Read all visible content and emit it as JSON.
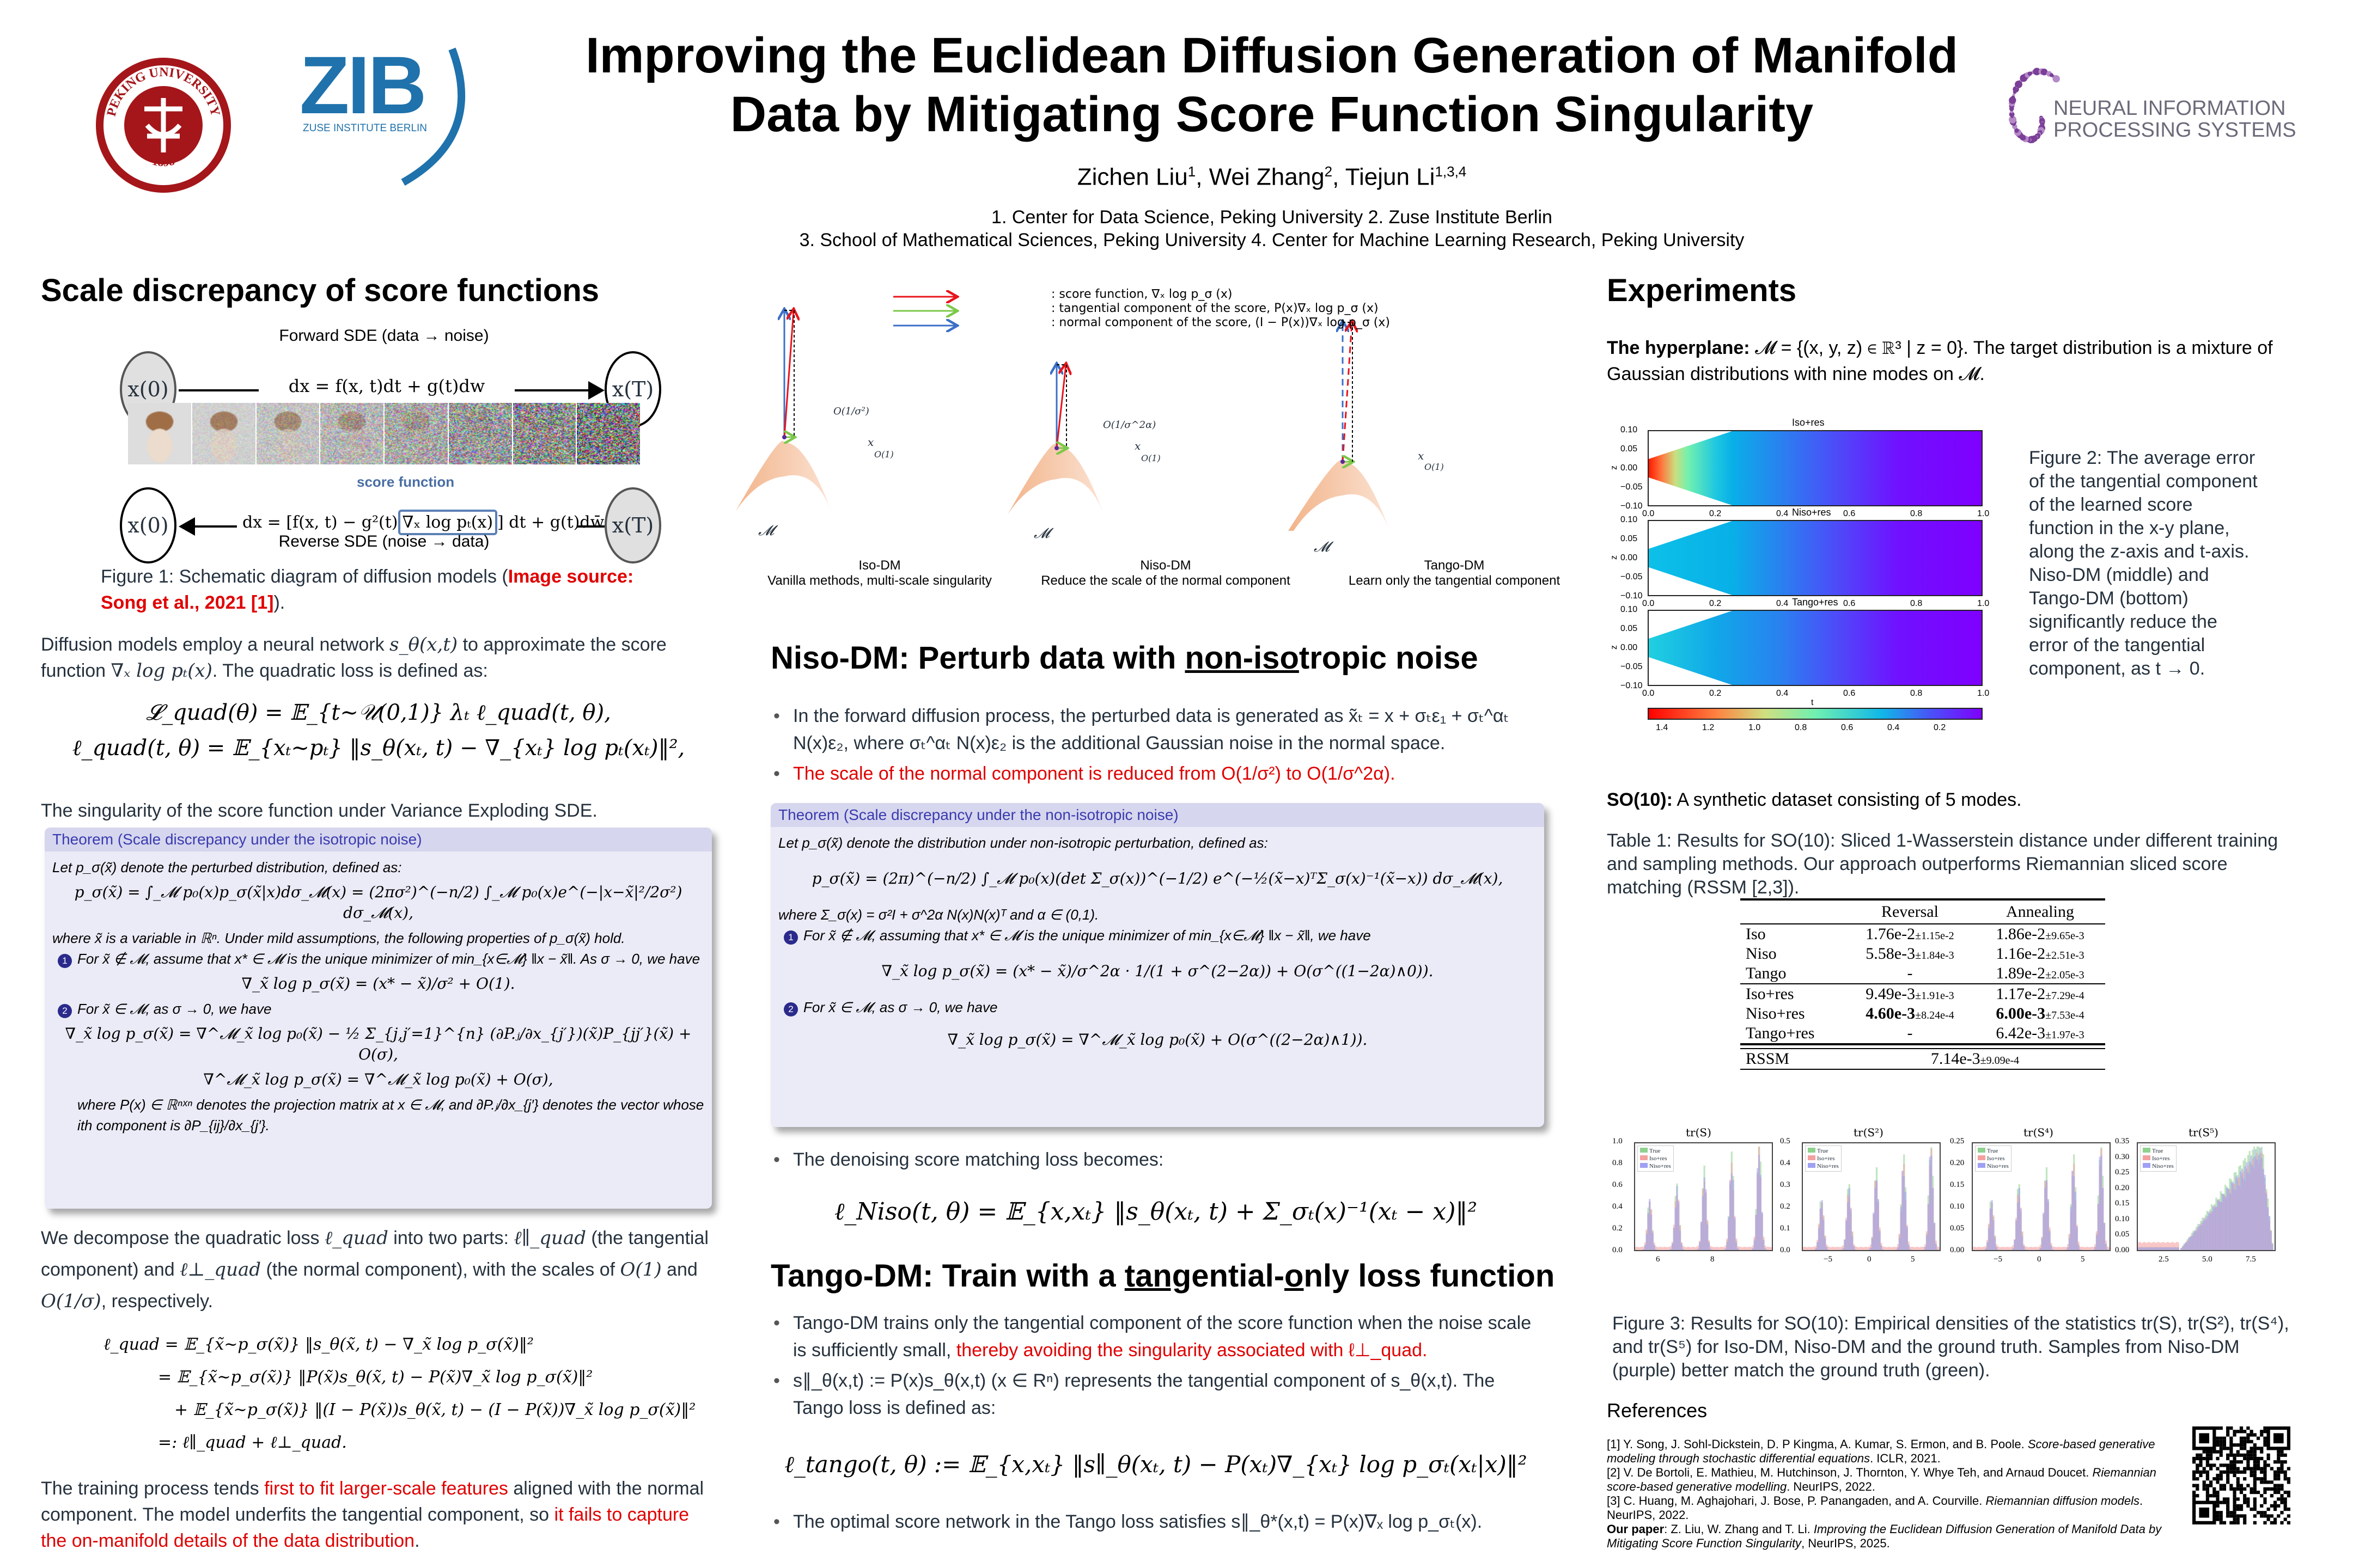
{
  "header": {
    "title_line1": "Improving the Euclidean Diffusion Generation of Manifold",
    "title_line2": "Data by Mitigating Score Function Singularity",
    "authors": [
      {
        "name": "Zichen Liu",
        "sup": "1"
      },
      {
        "name": "Wei Zhang",
        "sup": "2"
      },
      {
        "name": "Tiejun Li",
        "sup": "1,3,4"
      }
    ],
    "affiliation_line1": "1. Center for Data Science, Peking University 2. Zuse Institute Berlin",
    "affiliation_line2": "3. School of Mathematical Sciences, Peking University 4. Center for Machine Learning Research, Peking University",
    "logos": {
      "pku": "PEKING UNIVERSITY",
      "pku_year": "1898",
      "zib": "ZIB",
      "zib_sub": "ZUSE INSTITUTE BERLIN",
      "neurips_line1": "NEURAL INFORMATION",
      "neurips_line2": "PROCESSING SYSTEMS"
    }
  },
  "colors": {
    "accent_red": "#e00000",
    "theorem_header": "#3a3ab0",
    "theorem_bg": "#ebebf7",
    "zib_blue": "#1f72ac",
    "pku_red": "#a4161a",
    "neurips_purple": "#7b3f98"
  },
  "left": {
    "heading": "Scale discrepancy of score functions",
    "fig1": {
      "forward_label": "Forward SDE (data → noise)",
      "forward_eq": "dx = f(x, t)dt + g(t)dw",
      "reverse_label": "Reverse SDE (noise → data)",
      "reverse_eq_a": "dx = [f(x, t) − g²(t)",
      "reverse_eq_box": "∇ₓ log pₜ(x)",
      "reverse_eq_b": "] dt + g(t)dw̄",
      "score_label": "score function",
      "x0": "x(0)",
      "xT": "x(T)"
    },
    "fig1_caption": {
      "a": "Figure 1: Schematic diagram of diffusion models (",
      "src": "Image source: Song et al., 2021 [1]",
      "b": ")."
    },
    "p1": {
      "a": "Diffusion models employ a neural network ",
      "m1": "s_θ(x,t)",
      "b": " to approximate the score function ",
      "m2": "∇ₓ log pₜ(x)",
      "c": ". The quadratic loss is defined as:"
    },
    "eq1": "𝓛_quad(θ) = 𝔼_{t∼𝒰(0,1)} λₜ ℓ_quad(t, θ),",
    "eq2": "ℓ_quad(t, θ) = 𝔼_{xₜ∼pₜ} ‖s_θ(xₜ, t) − ∇_{xₜ} log pₜ(xₜ)‖²,",
    "p2": "The singularity of the score function under Variance Exploding SDE.",
    "theorem": {
      "title": "Theorem (Scale discrepancy under the isotropic noise)",
      "intro": "Let p_σ(x̃) denote the perturbed distribution, defined as:",
      "eq": "p_σ(x̃) = ∫_𝓜 p₀(x)p_σ(x̃|x)dσ_𝓜(x) = (2πσ²)^(−n/2) ∫_𝓜 p₀(x)e^(−|x−x̃|²/2σ²) dσ_𝓜(x),",
      "where": "where x̃ is a variable in ℝⁿ. Under mild assumptions, the following properties of p_σ(x̃) hold.",
      "item1_num": "1",
      "item1": "For x̃ ∉ 𝓜, assume that x* ∈ 𝓜 is the unique minimizer of min_{x∈𝓜} ‖x − x̃‖. As σ → 0, we have",
      "item1_eq": "∇_x̃ log p_σ(x̃) = (x* − x̃)/σ² + O(1).",
      "item2_num": "2",
      "item2": "For x̃ ∈ 𝓜, as σ → 0, we have",
      "item2_eq1": "∇_x̃ log p_σ(x̃) = ∇^𝓜_x̃ log p₀(x̃) − ½ Σ_{j,j′=1}^{n} (∂P.ⱼ/∂x_{j′})(x̃)P_{jj′}(x̃) + O(σ),",
      "item2_eq2": "∇^𝓜_x̃ log p_σ(x̃) = ∇^𝓜_x̃ log p₀(x̃) + O(σ),",
      "note": "where P(x) ∈ ℝⁿˣⁿ denotes the projection matrix at x ∈ 𝓜, and ∂P.ⱼ/∂x_{j′} denotes the vector whose ith component is ∂P_{ij}/∂x_{j′}."
    },
    "p3": {
      "a": "We decompose the quadratic loss ",
      "m1": "ℓ_quad",
      "b": " into two parts: ",
      "m2": "ℓ∥_quad",
      "c": " (the tangential component) and ",
      "m3": "ℓ⊥_quad",
      "d": " (the normal component), with the scales of ",
      "m4": "O(1)",
      "e": " and ",
      "m5": "O(1/σ)",
      "f": ", respectively."
    },
    "decomp": [
      "ℓ_quad = 𝔼_{x̃∼p_σ(x̃)} ‖s_θ(x̃, t) − ∇_x̃ log p_σ(x̃)‖²",
      "= 𝔼_{x̃∼p_σ(x̃)} ‖P(x̃)s_θ(x̃, t) − P(x̃)∇_x̃ log p_σ(x̃)‖²",
      "+ 𝔼_{x̃∼p_σ(x̃)} ‖(I − P(x̃))s_θ(x̃, t) − (I − P(x̃))∇_x̃ log p_σ(x̃)‖²",
      "=: ℓ∥_quad + ℓ⊥_quad."
    ],
    "p4": {
      "a": "The training process tends ",
      "r1": "first to fit larger-scale features",
      "b": " aligned with the normal component. The model underfits the tangential component, so ",
      "r2": "it fails to capture the on-manifold details of the data distribution",
      "c": "."
    }
  },
  "middle": {
    "fig": {
      "legend": [
        ": score function, ∇ₓ log p_σ (x)",
        ": tangential component of the score, P(x)∇ₓ log p_σ (x)",
        ": normal component of the score, (I − P(x))∇ₓ log p_σ (x)"
      ],
      "panels": [
        {
          "name": "Iso-DM",
          "desc": "Vanilla methods, multi-scale singularity",
          "scale": "O(1/σ²)"
        },
        {
          "name": "Niso-DM",
          "desc": "Reduce the scale of the normal component",
          "scale": "O(1/σ^2α)"
        },
        {
          "name": "Tango-DM",
          "desc": "Learn only the tangential component",
          "scale": ""
        }
      ],
      "point_label": "x",
      "tangent_scale": "O(1)",
      "manifold_label": "𝓜"
    },
    "niso_heading": {
      "a": "Niso-DM: Perturb data with ",
      "u": "non-iso",
      "b": "tropic noise"
    },
    "niso_bullets": {
      "b1": "In the forward diffusion process, the perturbed data is generated as x̃ₜ = x + σₜε₁ + σₜ^αₜ N(x)ε₂, where σₜ^αₜ N(x)ε₂ is the additional Gaussian noise in the normal space.",
      "b2": "The scale of the normal component is reduced from O(1/σ²) to O(1/σ^2α)."
    },
    "theorem": {
      "title": "Theorem (Scale discrepancy under the non-isotropic noise)",
      "intro": "Let p_σ(x̃) denote the distribution under non-isotropic perturbation, defined as:",
      "eq": "p_σ(x̃) = (2π)^(−n/2) ∫_𝓜 p₀(x)(det Σ_σ(x))^(−1/2) e^(−½(x̃−x)ᵀΣ_σ(x)⁻¹(x̃−x)) dσ_𝓜(x),",
      "where": "where Σ_σ(x) = σ²I + σ^2α N(x)N(x)ᵀ and α ∈ (0,1).",
      "item1_num": "1",
      "item1": "For x̃ ∉ 𝓜, assuming that x* ∈ 𝓜 is the unique minimizer of min_{x∈𝓜} ‖x − x̃‖, we have",
      "item1_eq": "∇_x̃ log p_σ(x̃) = (x* − x̃)/σ^2α · 1/(1 + σ^(2−2α)) + O(σ^((1−2α)∧0)).",
      "item2_num": "2",
      "item2": "For x̃ ∈ 𝓜, as σ → 0, we have",
      "item2_eq": "∇_x̃ log p_σ(x̃) = ∇^𝓜_x̃ log p₀(x̃) + O(σ^((2−2α)∧1))."
    },
    "dsm_bullet": "The denoising score matching loss becomes:",
    "dsm_eq": "ℓ_Niso(t, θ) = 𝔼_{x,xₜ} ‖s_θ(xₜ, t) + Σ_σₜ(x)⁻¹(xₜ − x)‖²",
    "tango_heading": {
      "a": "Tango-DM: Train with a ",
      "u1": "tang",
      "b": "ential-",
      "u2": "o",
      "c": "nly loss function"
    },
    "tango_bullets": {
      "b1a": "Tango-DM trains only the tangential component of the score function when the noise scale is sufficiently small, ",
      "b1r": "thereby avoiding the singularity associated with ℓ⊥_quad.",
      "b2": "s∥_θ(x,t) := P(x)s_θ(x,t) (x ∈ Rⁿ) represents the tangential component of s_θ(x,t). The Tango loss is defined as:",
      "eq": "ℓ_tango(t, θ) := 𝔼_{x,xₜ} ‖s∥_θ(xₜ, t) − P(xₜ)∇_{xₜ} log p_σₜ(xₜ|x)‖²",
      "b3": "The optimal score network in the Tango loss satisfies s∥_θ*(x,t) = P(x)∇ₓ log p_σₜ(x)."
    }
  },
  "right": {
    "heading": "Experiments",
    "hyperplane": {
      "label": "The hyperplane: ",
      "text": "𝓜 = {(x, y, z) ∈ ℝ³ | z = 0}. The target distribution is a mixture of Gaussian distributions with nine modes on 𝓜."
    },
    "fig2": {
      "panels": [
        "Iso+res",
        "Niso+res",
        "Tango+res"
      ],
      "y_ticks": [
        "0.10",
        "0.05",
        "0.00",
        "−0.05",
        "−0.10"
      ],
      "x_ticks": [
        "0.0",
        "0.2",
        "0.4",
        "0.6",
        "0.8",
        "1.0"
      ],
      "ylabel": "z",
      "xlabel": "t",
      "colorbar_ticks": [
        "1.4",
        "1.2",
        "1.0",
        "0.8",
        "0.6",
        "0.4",
        "0.2"
      ],
      "colormap": "rainbow"
    },
    "fig2_caption": "Figure 2: The average error of the tangential component of the learned score function in the x-y plane, along the z-axis and t-axis. Niso-DM (middle) and Tango-DM (bottom) significantly reduce the error of the tangential component, as t → 0.",
    "so10": {
      "label": "SO(10):",
      "text": " A synthetic dataset consisting of 5 modes."
    },
    "table_caption": "Table 1: Results for SO(10): Sliced 1-Wasserstein distance under different training and sampling methods. Our approach outperforms Riemannian sliced score matching (RSSM [2,3]).",
    "table": {
      "headers": [
        "",
        "Reversal",
        "Annealing"
      ],
      "group1": [
        {
          "method": "Iso",
          "rev": "1.76e-2",
          "rev_sd": "±1.15e-2",
          "ann": "1.86e-2",
          "ann_sd": "±9.65e-3"
        },
        {
          "method": "Niso",
          "rev": "5.58e-3",
          "rev_sd": "±1.84e-3",
          "ann": "1.16e-2",
          "ann_sd": "±2.51e-3"
        },
        {
          "method": "Tango",
          "rev": "-",
          "rev_sd": "",
          "ann": "1.89e-2",
          "ann_sd": "±2.05e-3"
        }
      ],
      "group2": [
        {
          "method": "Iso+res",
          "rev": "9.49e-3",
          "rev_sd": "±1.91e-3",
          "ann": "1.17e-2",
          "ann_sd": "±7.29e-4"
        },
        {
          "method": "Niso+res",
          "rev": "4.60e-3",
          "rev_sd": "±8.24e-4",
          "ann": "6.00e-3",
          "ann_sd": "±7.53e-4",
          "bold": true
        },
        {
          "method": "Tango+res",
          "rev": "-",
          "rev_sd": "",
          "ann": "6.42e-3",
          "ann_sd": "±1.97e-3"
        }
      ],
      "rssm": {
        "method": "RSSM",
        "val": "7.14e-3",
        "sd": "±9.09e-4"
      }
    },
    "fig3": {
      "legend": [
        "True",
        "Iso+res",
        "Niso+res"
      ],
      "legend_colors": [
        "#8fd18f",
        "#f4a0a0",
        "#a0a0f4"
      ],
      "panels": [
        {
          "title": "tr(S)",
          "y_ticks": [
            "0.0",
            "0.2",
            "0.4",
            "0.6",
            "0.8",
            "1.0"
          ],
          "x_ticks": [
            "6",
            "8"
          ]
        },
        {
          "title": "tr(S²)",
          "y_ticks": [
            "0.0",
            "0.1",
            "0.2",
            "0.3",
            "0.4",
            "0.5"
          ],
          "x_ticks": [
            "−5",
            "0",
            "5"
          ]
        },
        {
          "title": "tr(S⁴)",
          "y_ticks": [
            "0.00",
            "0.05",
            "0.10",
            "0.15",
            "0.20",
            "0.25"
          ],
          "x_ticks": [
            "−5",
            "0",
            "5"
          ]
        },
        {
          "title": "tr(S⁵)",
          "y_ticks": [
            "0.00",
            "0.05",
            "0.10",
            "0.15",
            "0.20",
            "0.25",
            "0.30",
            "0.35"
          ],
          "x_ticks": [
            "2.5",
            "5.0",
            "7.5"
          ]
        }
      ]
    },
    "fig3_caption": "Figure 3: Results for SO(10): Empirical densities of the statistics tr(S), tr(S²), tr(S⁴), and tr(S⁵) for Iso-DM, Niso-DM and the ground truth. Samples from Niso-DM (purple) better match the ground truth (green).",
    "references_heading": "References",
    "references": [
      {
        "a": "[1] Y. Song, J. Sohl-Dickstein, D. P Kingma, A. Kumar, S. Ermon, and B. Poole. ",
        "i": "Score-based generative modeling through stochastic differential equations",
        "b": ". ICLR, 2021."
      },
      {
        "a": "[2] V. De Bortoli, E. Mathieu, M. Hutchinson, J. Thornton, Y. Whye Teh, and Arnaud Doucet. ",
        "i": "Riemannian score-based generative modelling",
        "b": ". NeurIPS, 2022."
      },
      {
        "a": "[3] C. Huang, M. Aghajohari, J. Bose, P. Panangaden, and A. Courville. ",
        "i": "Riemannian diffusion models",
        "b": ". NeurIPS, 2022."
      },
      {
        "label": "Our paper",
        "a": ": Z. Liu, W. Zhang and T. Li. ",
        "i": "Improving the Euclidean Diffusion Generation of Manifold Data by Mitigating Score Function Singularity",
        "b": ", NeurIPS, 2025."
      }
    ]
  }
}
